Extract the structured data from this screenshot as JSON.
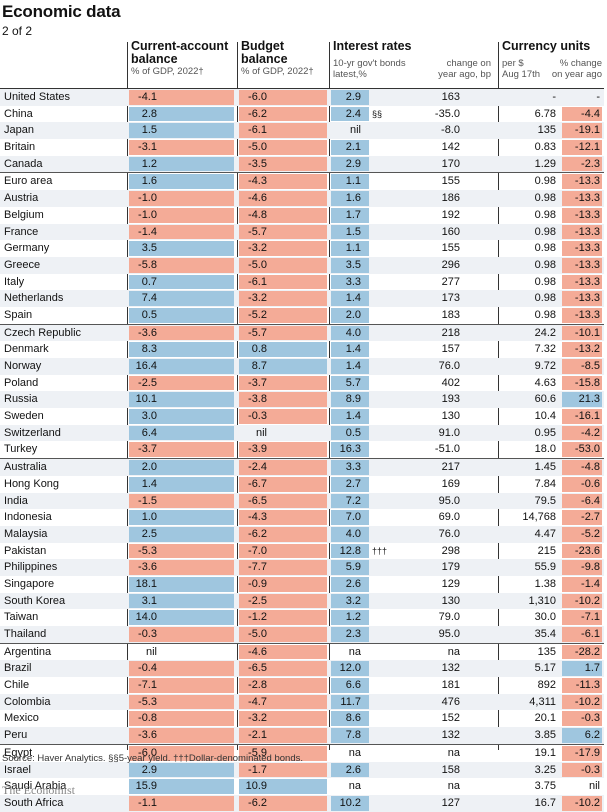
{
  "title": "Economic data",
  "subtitle": "2 of 2",
  "headers": {
    "ca": {
      "title1": "Current-account",
      "title2": "balance",
      "sub": "% of GDP, 2022†"
    },
    "bb": {
      "title1": "Budget",
      "title2": "balance",
      "sub": "% of GDP, 2022†"
    },
    "ir": {
      "title": "Interest rates",
      "sub1a": "10-yr gov't bonds",
      "sub1b": "latest,%",
      "sub2a": "change on",
      "sub2b": "year ago, bp"
    },
    "cu": {
      "title": "Currency units",
      "sub1a": "per $",
      "sub1b": "Aug 17th",
      "sub2a": "% change",
      "sub2b": "on year ago"
    }
  },
  "rows": [
    {
      "country": "United States",
      "ca": "-4.1",
      "bb": "-6.0",
      "ir": "2.9",
      "note": "",
      "ch": "163",
      "fx": "-",
      "fxch": "-"
    },
    {
      "country": "China",
      "ca": "2.8",
      "bb": "-6.2",
      "ir": "2.4",
      "note": "§§",
      "ch": "-35.0",
      "fx": "6.78",
      "fxch": "-4.4"
    },
    {
      "country": "Japan",
      "ca": "1.5",
      "bb": "-6.1",
      "ir": "nil",
      "note": "",
      "ch": "-8.0",
      "fx": "135",
      "fxch": "-19.1"
    },
    {
      "country": "Britain",
      "ca": "-3.1",
      "bb": "-5.0",
      "ir": "2.1",
      "note": "",
      "ch": "142",
      "fx": "0.83",
      "fxch": "-12.1"
    },
    {
      "country": "Canada",
      "ca": "1.2",
      "bb": "-3.5",
      "ir": "2.9",
      "note": "",
      "ch": "170",
      "fx": "1.29",
      "fxch": "-2.3"
    },
    {
      "country": "Euro area",
      "ca": "1.6",
      "bb": "-4.3",
      "ir": "1.1",
      "note": "",
      "ch": "155",
      "fx": "0.98",
      "fxch": "-13.3",
      "sep": true
    },
    {
      "country": "Austria",
      "ca": "-1.0",
      "bb": "-4.6",
      "ir": "1.6",
      "note": "",
      "ch": "186",
      "fx": "0.98",
      "fxch": "-13.3"
    },
    {
      "country": "Belgium",
      "ca": "-1.0",
      "bb": "-4.8",
      "ir": "1.7",
      "note": "",
      "ch": "192",
      "fx": "0.98",
      "fxch": "-13.3"
    },
    {
      "country": "France",
      "ca": "-1.4",
      "bb": "-5.7",
      "ir": "1.5",
      "note": "",
      "ch": "160",
      "fx": "0.98",
      "fxch": "-13.3"
    },
    {
      "country": "Germany",
      "ca": "3.5",
      "bb": "-3.2",
      "ir": "1.1",
      "note": "",
      "ch": "155",
      "fx": "0.98",
      "fxch": "-13.3"
    },
    {
      "country": "Greece",
      "ca": "-5.8",
      "bb": "-5.0",
      "ir": "3.5",
      "note": "",
      "ch": "296",
      "fx": "0.98",
      "fxch": "-13.3"
    },
    {
      "country": "Italy",
      "ca": "0.7",
      "bb": "-6.1",
      "ir": "3.3",
      "note": "",
      "ch": "277",
      "fx": "0.98",
      "fxch": "-13.3"
    },
    {
      "country": "Netherlands",
      "ca": "7.4",
      "bb": "-3.2",
      "ir": "1.4",
      "note": "",
      "ch": "173",
      "fx": "0.98",
      "fxch": "-13.3"
    },
    {
      "country": "Spain",
      "ca": "0.5",
      "bb": "-5.2",
      "ir": "2.0",
      "note": "",
      "ch": "183",
      "fx": "0.98",
      "fxch": "-13.3"
    },
    {
      "country": "Czech Republic",
      "ca": "-3.6",
      "bb": "-5.7",
      "ir": "4.0",
      "note": "",
      "ch": "218",
      "fx": "24.2",
      "fxch": "-10.1",
      "sep": true
    },
    {
      "country": "Denmark",
      "ca": "8.3",
      "bb": "0.8",
      "ir": "1.4",
      "note": "",
      "ch": "157",
      "fx": "7.32",
      "fxch": "-13.2"
    },
    {
      "country": "Norway",
      "ca": "16.4",
      "bb": "8.7",
      "ir": "1.4",
      "note": "",
      "ch": "76.0",
      "fx": "9.72",
      "fxch": "-8.5"
    },
    {
      "country": "Poland",
      "ca": "-2.5",
      "bb": "-3.7",
      "ir": "5.7",
      "note": "",
      "ch": "402",
      "fx": "4.63",
      "fxch": "-15.8"
    },
    {
      "country": "Russia",
      "ca": "10.1",
      "bb": "-3.8",
      "ir": "8.9",
      "note": "",
      "ch": "193",
      "fx": "60.6",
      "fxch": "21.3"
    },
    {
      "country": "Sweden",
      "ca": "3.0",
      "bb": "-0.3",
      "ir": "1.4",
      "note": "",
      "ch": "130",
      "fx": "10.4",
      "fxch": "-16.1"
    },
    {
      "country": "Switzerland",
      "ca": "6.4",
      "bb": "nil",
      "ir": "0.5",
      "note": "",
      "ch": "91.0",
      "fx": "0.95",
      "fxch": "-4.2"
    },
    {
      "country": "Turkey",
      "ca": "-3.7",
      "bb": "-3.9",
      "ir": "16.3",
      "note": "",
      "ch": "-51.0",
      "fx": "18.0",
      "fxch": "-53.0"
    },
    {
      "country": "Australia",
      "ca": "2.0",
      "bb": "-2.4",
      "ir": "3.3",
      "note": "",
      "ch": "217",
      "fx": "1.45",
      "fxch": "-4.8",
      "sep": true
    },
    {
      "country": "Hong Kong",
      "ca": "1.4",
      "bb": "-6.7",
      "ir": "2.7",
      "note": "",
      "ch": "169",
      "fx": "7.84",
      "fxch": "-0.6"
    },
    {
      "country": "India",
      "ca": "-1.5",
      "bb": "-6.5",
      "ir": "7.2",
      "note": "",
      "ch": "95.0",
      "fx": "79.5",
      "fxch": "-6.4"
    },
    {
      "country": "Indonesia",
      "ca": "1.0",
      "bb": "-4.3",
      "ir": "7.0",
      "note": "",
      "ch": "69.0",
      "fx": "14,768",
      "fxch": "-2.7"
    },
    {
      "country": "Malaysia",
      "ca": "2.5",
      "bb": "-6.2",
      "ir": "4.0",
      "note": "",
      "ch": "76.0",
      "fx": "4.47",
      "fxch": "-5.2"
    },
    {
      "country": "Pakistan",
      "ca": "-5.3",
      "bb": "-7.0",
      "ir": "12.8",
      "note": "†††",
      "ch": "298",
      "fx": "215",
      "fxch": "-23.6"
    },
    {
      "country": "Philippines",
      "ca": "-3.6",
      "bb": "-7.7",
      "ir": "5.9",
      "note": "",
      "ch": "179",
      "fx": "55.9",
      "fxch": "-9.8"
    },
    {
      "country": "Singapore",
      "ca": "18.1",
      "bb": "-0.9",
      "ir": "2.6",
      "note": "",
      "ch": "129",
      "fx": "1.38",
      "fxch": "-1.4"
    },
    {
      "country": "South Korea",
      "ca": "3.1",
      "bb": "-2.5",
      "ir": "3.2",
      "note": "",
      "ch": "130",
      "fx": "1,310",
      "fxch": "-10.2"
    },
    {
      "country": "Taiwan",
      "ca": "14.0",
      "bb": "-1.2",
      "ir": "1.2",
      "note": "",
      "ch": "79.0",
      "fx": "30.0",
      "fxch": "-7.1"
    },
    {
      "country": "Thailand",
      "ca": "-0.3",
      "bb": "-5.0",
      "ir": "2.3",
      "note": "",
      "ch": "95.0",
      "fx": "35.4",
      "fxch": "-6.1"
    },
    {
      "country": "Argentina",
      "ca": "nil",
      "bb": "-4.6",
      "ir": "na",
      "note": "",
      "ch": "na",
      "fx": "135",
      "fxch": "-28.2",
      "sep": true
    },
    {
      "country": "Brazil",
      "ca": "-0.4",
      "bb": "-6.5",
      "ir": "12.0",
      "note": "",
      "ch": "132",
      "fx": "5.17",
      "fxch": "1.7"
    },
    {
      "country": "Chile",
      "ca": "-7.1",
      "bb": "-2.8",
      "ir": "6.6",
      "note": "",
      "ch": "181",
      "fx": "892",
      "fxch": "-11.3"
    },
    {
      "country": "Colombia",
      "ca": "-5.3",
      "bb": "-4.7",
      "ir": "11.7",
      "note": "",
      "ch": "476",
      "fx": "4,311",
      "fxch": "-10.2"
    },
    {
      "country": "Mexico",
      "ca": "-0.8",
      "bb": "-3.2",
      "ir": "8.6",
      "note": "",
      "ch": "152",
      "fx": "20.1",
      "fxch": "-0.3"
    },
    {
      "country": "Peru",
      "ca": "-3.6",
      "bb": "-2.1",
      "ir": "7.8",
      "note": "",
      "ch": "132",
      "fx": "3.85",
      "fxch": "6.2"
    },
    {
      "country": "Egypt",
      "ca": "-6.0",
      "bb": "-5.9",
      "ir": "na",
      "note": "",
      "ch": "na",
      "fx": "19.1",
      "fxch": "-17.9",
      "sep": true
    },
    {
      "country": "Israel",
      "ca": "2.9",
      "bb": "-1.7",
      "ir": "2.6",
      "note": "",
      "ch": "158",
      "fx": "3.25",
      "fxch": "-0.3"
    },
    {
      "country": "Saudi Arabia",
      "ca": "15.9",
      "bb": "10.9",
      "ir": "na",
      "note": "",
      "ch": "na",
      "fx": "3.75",
      "fxch": "nil"
    },
    {
      "country": "South Africa",
      "ca": "-1.1",
      "bb": "-6.2",
      "ir": "10.2",
      "note": "",
      "ch": "127",
      "fx": "16.7",
      "fxch": "-10.2"
    }
  ],
  "footnote": "Source: Haver Analytics. §§5-year yield. †††Dollar-denominated bonds.",
  "brand": "The Economist",
  "colors": {
    "positive": "#9fc6df",
    "negative": "#f4ab97",
    "stripe": "#eef1f5"
  }
}
